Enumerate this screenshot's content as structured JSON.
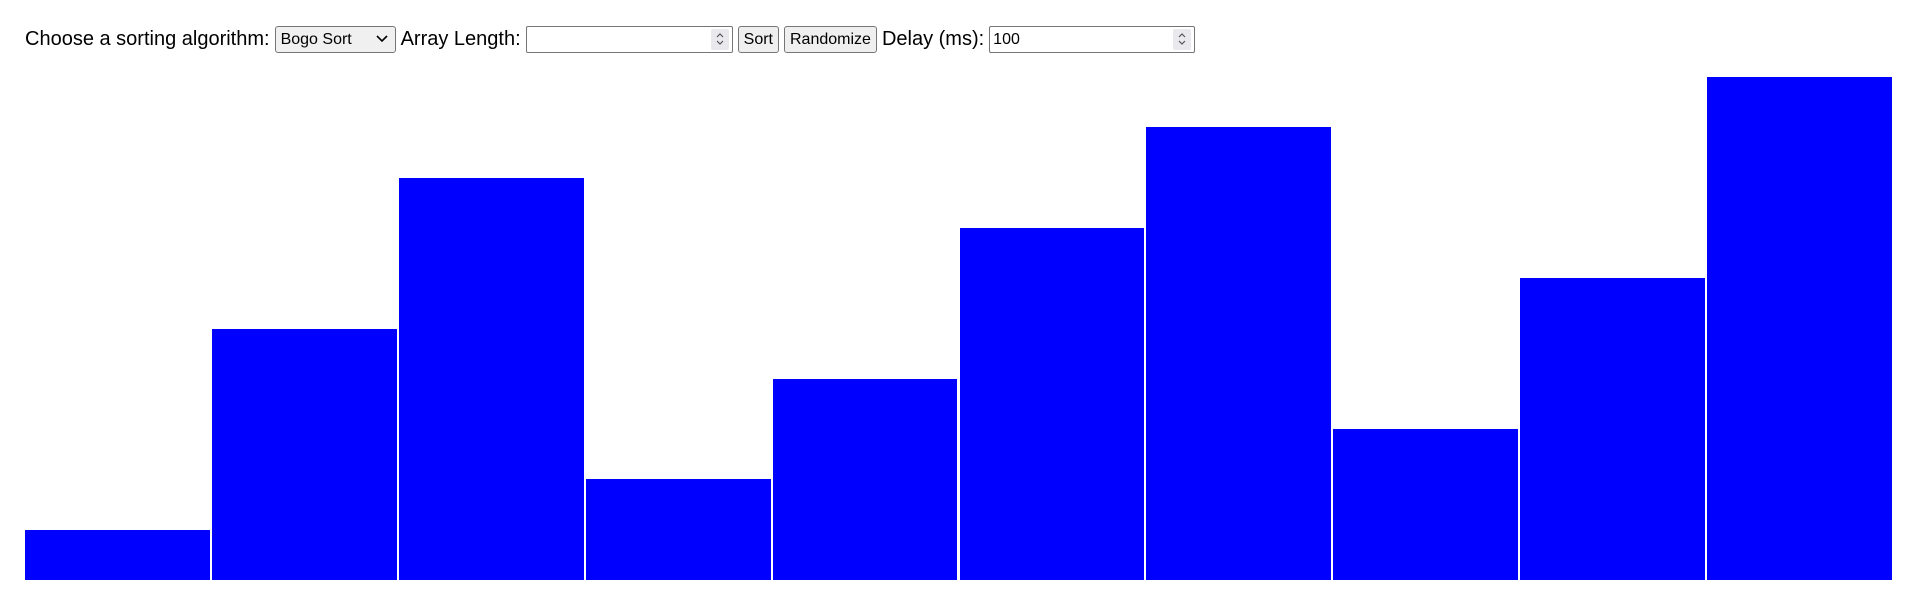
{
  "controls": {
    "algorithm_label": "Choose a sorting algorithm:",
    "algorithm_selected": "Bogo Sort",
    "length_label": "Array Length:",
    "length_value": "",
    "sort_label": "Sort",
    "randomize_label": "Randomize",
    "delay_label": "Delay (ms):",
    "delay_value": "100"
  },
  "icons": {
    "select_arrow": "chevron-down-icon",
    "spinner": "spinner-arrows-icon"
  },
  "colors": {
    "bar": "#0000ff",
    "background": "#ffffff"
  },
  "array": {
    "values": [
      1,
      5,
      8,
      2,
      4,
      7,
      9,
      3,
      6,
      10
    ],
    "max": 10
  }
}
